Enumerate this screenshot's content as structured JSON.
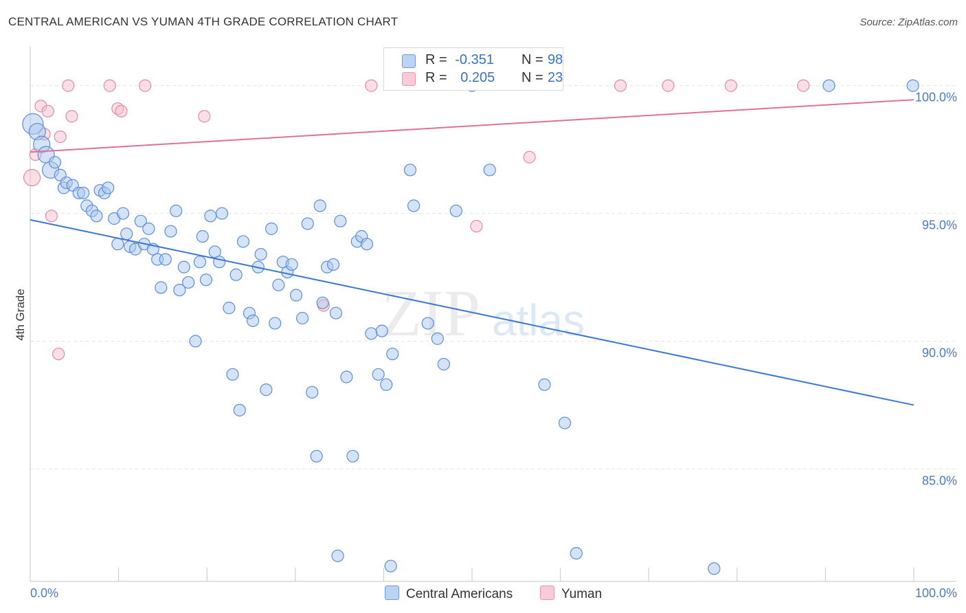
{
  "title": "CENTRAL AMERICAN VS YUMAN 4TH GRADE CORRELATION CHART",
  "source": "Source: ZipAtlas.com",
  "watermark": {
    "zip": "ZIP",
    "atlas": "atlas"
  },
  "colors": {
    "central_fill": "#a9c8ef",
    "central_stroke": "#5b8fd6",
    "central_line": "#3a78d4",
    "yuman_fill": "#f5bfcf",
    "yuman_stroke": "#e48aa6",
    "yuman_line": "#e0709a",
    "tick_text": "#4a7cc4",
    "grid": "#e6e6e6"
  },
  "legend": {
    "central": {
      "r_label": "R =",
      "r_value": "-0.351",
      "n_label": "N =",
      "n_value": "98"
    },
    "yuman": {
      "r_label": "R =",
      "r_value": "0.205",
      "n_label": "N =",
      "n_value": "23"
    }
  },
  "chart_data": {
    "type": "scatter",
    "title": "CENTRAL AMERICAN VS YUMAN 4TH GRADE CORRELATION CHART",
    "xlabel": "",
    "ylabel": "4th Grade",
    "xlim": [
      0,
      100
    ],
    "ylim": [
      80.6,
      101.2
    ],
    "x_tick_labels": [
      "0.0%",
      "100.0%"
    ],
    "y_ticks": [
      85,
      90,
      95,
      100
    ],
    "y_tick_labels": [
      "85.0%",
      "90.0%",
      "95.0%",
      "100.0%"
    ],
    "grid": "horizontal dashed",
    "legend_position": "top-center",
    "series": [
      {
        "name": "Central Americans",
        "r": -0.351,
        "n": 98,
        "trend": {
          "x": [
            0,
            100
          ],
          "y": [
            94.75,
            87.5
          ]
        },
        "points": [
          [
            0.3,
            98.5,
            3
          ],
          [
            0.8,
            98.2,
            2
          ],
          [
            1.3,
            97.7,
            2
          ],
          [
            1.8,
            97.3,
            2
          ],
          [
            2.3,
            96.7,
            2
          ],
          [
            2.8,
            97.0,
            1
          ],
          [
            3.4,
            96.5,
            1
          ],
          [
            3.8,
            96.0,
            1
          ],
          [
            4.1,
            96.2,
            1
          ],
          [
            4.8,
            96.1,
            1
          ],
          [
            5.5,
            95.8,
            1
          ],
          [
            6.0,
            95.8,
            1
          ],
          [
            6.4,
            95.3,
            1
          ],
          [
            7.0,
            95.1,
            1
          ],
          [
            7.5,
            94.9,
            1
          ],
          [
            7.9,
            95.9,
            1
          ],
          [
            8.4,
            95.8,
            1
          ],
          [
            8.8,
            96.0,
            1
          ],
          [
            9.5,
            94.8,
            1
          ],
          [
            9.9,
            93.8,
            1
          ],
          [
            10.5,
            95.0,
            1
          ],
          [
            10.9,
            94.2,
            1
          ],
          [
            11.3,
            93.7,
            1
          ],
          [
            11.9,
            93.6,
            1
          ],
          [
            12.5,
            94.7,
            1
          ],
          [
            12.9,
            93.8,
            1
          ],
          [
            13.4,
            94.4,
            1
          ],
          [
            13.9,
            93.6,
            1
          ],
          [
            14.4,
            93.2,
            1
          ],
          [
            14.8,
            92.1,
            1
          ],
          [
            15.3,
            93.2,
            1
          ],
          [
            15.9,
            94.3,
            1
          ],
          [
            16.5,
            95.1,
            1
          ],
          [
            16.9,
            92.0,
            1
          ],
          [
            17.4,
            92.9,
            1
          ],
          [
            17.9,
            92.3,
            1
          ],
          [
            18.7,
            90.0,
            1
          ],
          [
            19.2,
            93.1,
            1
          ],
          [
            19.5,
            94.1,
            1
          ],
          [
            19.9,
            92.4,
            1
          ],
          [
            20.4,
            94.9,
            1
          ],
          [
            20.9,
            93.5,
            1
          ],
          [
            21.4,
            93.1,
            1
          ],
          [
            21.7,
            95.0,
            1
          ],
          [
            22.5,
            91.3,
            1
          ],
          [
            22.9,
            88.7,
            1
          ],
          [
            23.3,
            92.6,
            1
          ],
          [
            23.7,
            87.3,
            1
          ],
          [
            24.1,
            93.9,
            1
          ],
          [
            24.8,
            91.1,
            1
          ],
          [
            25.2,
            90.8,
            1
          ],
          [
            25.8,
            92.9,
            1
          ],
          [
            26.1,
            93.4,
            1
          ],
          [
            26.7,
            88.1,
            1
          ],
          [
            27.3,
            94.4,
            1
          ],
          [
            27.7,
            90.7,
            1
          ],
          [
            28.1,
            92.2,
            1
          ],
          [
            28.6,
            93.1,
            1
          ],
          [
            29.1,
            92.7,
            1
          ],
          [
            29.6,
            93.0,
            1
          ],
          [
            30.1,
            91.8,
            1
          ],
          [
            30.8,
            90.9,
            1
          ],
          [
            31.4,
            94.6,
            1
          ],
          [
            31.9,
            88.0,
            1
          ],
          [
            32.4,
            85.5,
            1
          ],
          [
            32.8,
            95.3,
            1
          ],
          [
            33.1,
            91.5,
            1
          ],
          [
            33.6,
            92.9,
            1
          ],
          [
            34.3,
            93.0,
            1
          ],
          [
            34.6,
            91.1,
            1
          ],
          [
            34.8,
            81.6,
            1
          ],
          [
            35.1,
            94.7,
            1
          ],
          [
            35.8,
            88.6,
            1
          ],
          [
            36.5,
            85.5,
            1
          ],
          [
            37.0,
            93.9,
            1
          ],
          [
            37.5,
            94.1,
            1
          ],
          [
            38.1,
            93.8,
            1
          ],
          [
            38.6,
            90.3,
            1
          ],
          [
            39.4,
            88.7,
            1
          ],
          [
            39.8,
            90.4,
            1
          ],
          [
            40.3,
            88.3,
            1
          ],
          [
            40.8,
            81.2,
            1
          ],
          [
            41.0,
            89.5,
            1
          ],
          [
            43.0,
            96.7,
            1
          ],
          [
            43.4,
            95.3,
            1
          ],
          [
            45.0,
            90.7,
            1
          ],
          [
            46.1,
            90.1,
            1
          ],
          [
            46.8,
            89.1,
            1
          ],
          [
            48.2,
            95.1,
            1
          ],
          [
            50.0,
            100.0,
            1
          ],
          [
            52.0,
            96.7,
            1
          ],
          [
            58.2,
            88.3,
            1
          ],
          [
            60.5,
            86.8,
            1
          ],
          [
            61.8,
            81.7,
            1
          ],
          [
            77.4,
            81.1,
            1
          ],
          [
            90.4,
            100.0,
            1
          ],
          [
            99.9,
            100.0,
            1
          ]
        ]
      },
      {
        "name": "Yuman",
        "r": 0.205,
        "n": 23,
        "trend": {
          "x": [
            0,
            100
          ],
          "y": [
            97.4,
            99.45
          ]
        },
        "points": [
          [
            0.2,
            96.4,
            2
          ],
          [
            0.6,
            97.3,
            1
          ],
          [
            1.2,
            99.2,
            1
          ],
          [
            1.6,
            98.1,
            1
          ],
          [
            2.0,
            99.0,
            1
          ],
          [
            2.4,
            94.9,
            1
          ],
          [
            3.2,
            89.5,
            1
          ],
          [
            3.4,
            98.0,
            1
          ],
          [
            4.3,
            100.0,
            1
          ],
          [
            4.7,
            98.8,
            1
          ],
          [
            9.0,
            100.0,
            1
          ],
          [
            9.9,
            99.1,
            1
          ],
          [
            10.3,
            99.0,
            1
          ],
          [
            13.0,
            100.0,
            1
          ],
          [
            19.7,
            98.8,
            1
          ],
          [
            33.2,
            91.4,
            1
          ],
          [
            38.6,
            100.0,
            1
          ],
          [
            50.5,
            94.5,
            1
          ],
          [
            56.5,
            97.2,
            1
          ],
          [
            66.8,
            100.0,
            1
          ],
          [
            72.2,
            100.0,
            1
          ],
          [
            79.3,
            100.0,
            1
          ],
          [
            87.5,
            100.0,
            1
          ]
        ]
      }
    ]
  }
}
